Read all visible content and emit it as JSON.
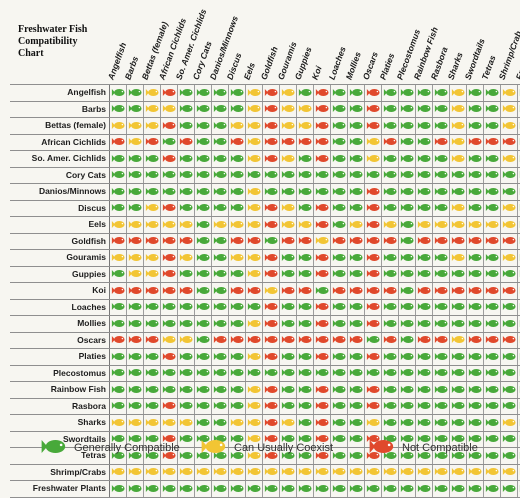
{
  "title": "Freshwater Fish Compatibility Chart",
  "columns": [
    "Angelfish",
    "Barbs",
    "Bettas (female)",
    "African Cichlids",
    "So. Amer. Cichlids",
    "Cory Cats",
    "Danios/Minnows",
    "Discus",
    "Eels",
    "Goldfish",
    "Gouramis",
    "Guppies",
    "Koi",
    "Loaches",
    "Mollies",
    "Oscars",
    "Platies",
    "Plecostomus",
    "Rainbow Fish",
    "Rasbora",
    "Sharks",
    "Swordtails",
    "Tetras",
    "Shrimp/Crab",
    "Freshwater Plants"
  ],
  "rows": [
    "Angelfish",
    "Barbs",
    "Bettas (female)",
    "African Cichlids",
    "So. Amer. Cichlids",
    "Cory Cats",
    "Danios/Minnows",
    "Discus",
    "Eels",
    "Goldfish",
    "Gouramis",
    "Guppies",
    "Koi",
    "Loaches",
    "Mollies",
    "Oscars",
    "Platies",
    "Plecostomus",
    "Rainbow Fish",
    "Rasbora",
    "Sharks",
    "Swordtails",
    "Tetras",
    "Shrimp/Crabs",
    "Freshwater Plants"
  ],
  "matrix": [
    "GGYRGGGGYRYGRGGRGGGGYGGYG",
    "GGYYGGGGYRYYRGGRGGGGYGGYG",
    "YYYRGGGYYRYYRGGRGGGGYGGYG",
    "RYRGRGGRYRRRRGGYRGGRYRRRG",
    "GGGRGGGGYRYGRGGYGGGGYGGYG",
    "GGGGGGGGGGGGGGGGGGGGGGGGG",
    "GGGGGGGGYGGGGGGRGGGGGGGGG",
    "GGYRGGGGYRYGRGGRGGGGYGGYG",
    "YYYYYGYYYRYYRGYRYGYYYYYYG",
    "RRRRRGGRRGRRYRRRRGRRRRRRG",
    "YYYRYGGYYRGGRGGRGGGGYGGYG",
    "GYYRGGGGYRGGRGGRGGGGGGGGG",
    "RRRRRGGRRYRRGRRRRGRRRRRRY",
    "GGGGGGGGGRGGRGGRGGGGGGGGG",
    "GGGGGGGGYRGGRGGRGGGGGGGGG",
    "RRRYYGRRRRRRRRRGRGRRYRRRY",
    "GGGRGGGGYRGGRGGRGGGGGGGGG",
    "GGGGGGGGGGGGGGGGGGGGGGGGG",
    "GGGGGGGGYRGGRGGRGGGGGGGGG",
    "GGGRGGGGYRGGRGGRGGGGGGGGG",
    "YYYYYGGYYRYGRGGYGGGGGGGYG",
    "GGGRGGGGYRGGRGGRGGGGGGGGG",
    "GGGRGGGGYRGGRGGRGGGGGGGGG",
    "YYYYYYYYYYYYYYYYYYYYYYYYY",
    "GGGGGGGGGGGGGGGGGGGGGGGGG"
  ],
  "colors": {
    "G": "#48a93a",
    "Y": "#f2c534",
    "R": "#e0492c"
  },
  "legend": [
    {
      "key": "G",
      "label": "Generally Compatible"
    },
    {
      "key": "Y",
      "label": "Can Usually Coexist"
    },
    {
      "key": "R",
      "label": "Not Compatible"
    }
  ],
  "icon": "fish-icon"
}
